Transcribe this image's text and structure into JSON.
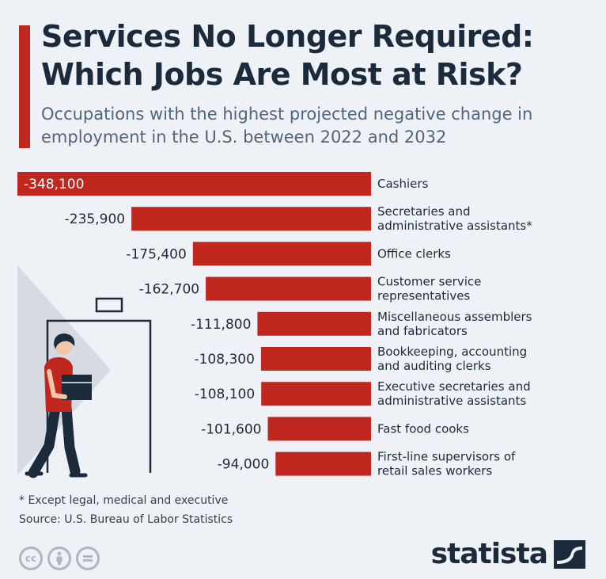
{
  "header": {
    "title": "Services No Longer Required: Which Jobs Are Most at Risk?",
    "subtitle": "Occupations with the highest projected negative change in employment in the U.S. between 2022 and 2032"
  },
  "chart_data": {
    "type": "bar",
    "orientation": "horizontal",
    "title": "Services No Longer Required: Which Jobs Are Most at Risk?",
    "subtitle": "Occupations with the highest projected negative change in employment in the U.S. between 2022 and 2032",
    "categories": [
      [
        "Cashiers"
      ],
      [
        "Secretaries and",
        "administrative assistants*"
      ],
      [
        "Office clerks"
      ],
      [
        "Customer service",
        "representatives"
      ],
      [
        "Miscellaneous assemblers",
        "and fabricators"
      ],
      [
        "Bookkeeping, accounting",
        "and auditing clerks"
      ],
      [
        "Executive secretaries and",
        "administrative assistants"
      ],
      [
        "Fast food cooks"
      ],
      [
        "First-line supervisors of",
        "retail sales workers"
      ]
    ],
    "values": [
      -348100,
      -235900,
      -175400,
      -162700,
      -111800,
      -108300,
      -108100,
      -101600,
      -94000
    ],
    "value_labels": [
      "-348,100",
      "-235,900",
      "-175,400",
      "-162,700",
      "-111,800",
      "-108,300",
      "-108,100",
      "-101,600",
      "-94,000"
    ],
    "bar_color": "#c0281f",
    "xlim": [
      -348100,
      0
    ]
  },
  "footer": {
    "footnote": "* Except legal, medical and executive",
    "source": "Source: U.S. Bureau of Labor Statistics",
    "brand": "statista"
  },
  "icons": {
    "license": [
      "creative-commons-icon",
      "attribution-icon",
      "no-derivatives-icon"
    ],
    "illustration": "person-carrying-box-leaving-illustration",
    "brand_mark": "statista-logo-icon"
  },
  "colors": {
    "accent": "#c0281f",
    "background": "#eef1f5",
    "text_dark": "#1c2b3c",
    "text_muted": "#51657b"
  }
}
